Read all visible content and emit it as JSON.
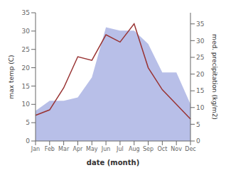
{
  "chart_data": {
    "type": "line",
    "categories": [
      "Jan",
      "Feb",
      "Mar",
      "Apr",
      "May",
      "Jun",
      "Jul",
      "Aug",
      "Sep",
      "Oct",
      "Nov",
      "Dec"
    ],
    "series": [
      {
        "type": "area",
        "axis": "y2",
        "color": "#b8bfe8",
        "values": [
          9.0,
          12.0,
          12.0,
          13.0,
          19.0,
          34.0,
          33.0,
          33.0,
          29.0,
          20.5,
          20.5,
          11.0
        ]
      },
      {
        "type": "line",
        "color": "#993333",
        "values": [
          7.0,
          8.5,
          14.5,
          23.0,
          22.0,
          29.0,
          27.0,
          32.0,
          20.0,
          14.0,
          10.0,
          6.0
        ]
      }
    ],
    "xlabel": "date (month)",
    "ylabel": "max temp (C)",
    "y2label": "med. precipitation (kg/m2)",
    "ylim": [
      0,
      35
    ],
    "yticks": [
      0,
      5,
      10,
      15,
      20,
      25,
      30,
      35
    ],
    "y2lim": [
      0,
      38.33
    ],
    "y2ticks": [
      0,
      5,
      10,
      15,
      20,
      25,
      30,
      35
    ],
    "grid": false
  }
}
